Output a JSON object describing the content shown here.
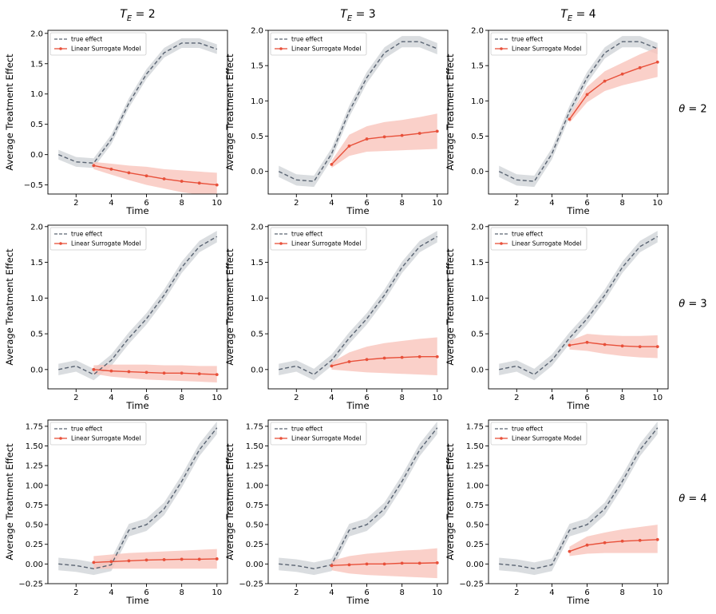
{
  "figure": {
    "column_titles": [
      "T_E = 2",
      "T_E = 3",
      "T_E = 4"
    ],
    "row_titles": [
      "θ = 2",
      "θ = 3",
      "θ = 4"
    ],
    "xlabel": "Time",
    "ylabel": "Average Treatment Effect",
    "legend": {
      "true": "true effect",
      "model": "Linear Surrogate Model",
      "placement": "upper-left"
    },
    "colors": {
      "true": "#5a6472",
      "true_band": "#d3d7db",
      "model": "#e8503a",
      "model_band": "#f9c4bc"
    }
  },
  "chart_data": [
    {
      "type": "line",
      "row": 0,
      "col": 0,
      "title": "T_E = 2",
      "row_label": "θ = 2",
      "xlim": [
        0.4,
        10.6
      ],
      "ylim": [
        -0.65,
        2.05
      ],
      "xticks": [
        2,
        4,
        6,
        8,
        10
      ],
      "yticks": [
        -0.5,
        0.0,
        0.5,
        1.0,
        1.5,
        2.0
      ],
      "ytick_labels": [
        "−0.5",
        "0.0",
        "0.5",
        "1.0",
        "1.5",
        "2.0"
      ],
      "true": {
        "x": [
          1,
          2,
          3,
          4,
          5,
          6,
          7,
          8,
          9,
          10
        ],
        "y": [
          0.0,
          -0.12,
          -0.14,
          0.25,
          0.85,
          1.33,
          1.68,
          1.84,
          1.84,
          1.74
        ],
        "band": 0.08
      },
      "model": {
        "x": [
          3,
          4,
          5,
          6,
          7,
          8,
          9,
          10
        ],
        "y": [
          -0.18,
          -0.24,
          -0.3,
          -0.35,
          -0.4,
          -0.44,
          -0.47,
          -0.5
        ],
        "lower": [
          -0.24,
          -0.33,
          -0.42,
          -0.5,
          -0.56,
          -0.62,
          -0.66,
          -0.7
        ],
        "upper": [
          -0.12,
          -0.15,
          -0.18,
          -0.2,
          -0.24,
          -0.26,
          -0.28,
          -0.3
        ]
      }
    },
    {
      "type": "line",
      "row": 0,
      "col": 1,
      "title": "T_E = 3",
      "row_label": "θ = 2",
      "xlim": [
        0.4,
        10.6
      ],
      "ylim": [
        -0.32,
        2.0
      ],
      "xticks": [
        2,
        4,
        6,
        8,
        10
      ],
      "yticks": [
        0.0,
        0.5,
        1.0,
        1.5,
        2.0
      ],
      "ytick_labels": [
        "0.0",
        "0.5",
        "1.0",
        "1.5",
        "2.0"
      ],
      "true": {
        "x": [
          1,
          2,
          3,
          4,
          5,
          6,
          7,
          8,
          9,
          10
        ],
        "y": [
          0.0,
          -0.12,
          -0.14,
          0.25,
          0.85,
          1.33,
          1.68,
          1.84,
          1.84,
          1.74
        ],
        "band": 0.08
      },
      "model": {
        "x": [
          4,
          5,
          6,
          7,
          8,
          9,
          10
        ],
        "y": [
          0.1,
          0.36,
          0.46,
          0.49,
          0.51,
          0.54,
          0.57
        ],
        "lower": [
          0.05,
          0.22,
          0.28,
          0.29,
          0.3,
          0.31,
          0.32
        ],
        "upper": [
          0.15,
          0.52,
          0.64,
          0.7,
          0.73,
          0.77,
          0.82
        ]
      }
    },
    {
      "type": "line",
      "row": 0,
      "col": 2,
      "title": "T_E = 4",
      "row_label": "θ = 2",
      "xlim": [
        0.4,
        10.6
      ],
      "ylim": [
        -0.32,
        2.0
      ],
      "xticks": [
        2,
        4,
        6,
        8,
        10
      ],
      "yticks": [
        0.0,
        0.5,
        1.0,
        1.5,
        2.0
      ],
      "ytick_labels": [
        "0.0",
        "0.5",
        "1.0",
        "1.5",
        "2.0"
      ],
      "true": {
        "x": [
          1,
          2,
          3,
          4,
          5,
          6,
          7,
          8,
          9,
          10
        ],
        "y": [
          0.0,
          -0.12,
          -0.14,
          0.25,
          0.85,
          1.33,
          1.68,
          1.84,
          1.84,
          1.74
        ],
        "band": 0.08
      },
      "model": {
        "x": [
          5,
          6,
          7,
          8,
          9,
          10
        ],
        "y": [
          0.74,
          1.09,
          1.28,
          1.38,
          1.47,
          1.55
        ],
        "lower": [
          0.69,
          0.98,
          1.14,
          1.22,
          1.28,
          1.34
        ],
        "upper": [
          0.79,
          1.2,
          1.42,
          1.54,
          1.66,
          1.76
        ]
      }
    },
    {
      "type": "line",
      "row": 1,
      "col": 0,
      "title": "",
      "row_label": "θ = 3",
      "xlim": [
        0.4,
        10.6
      ],
      "ylim": [
        -0.27,
        2.02
      ],
      "xticks": [
        2,
        4,
        6,
        8,
        10
      ],
      "yticks": [
        0.0,
        0.5,
        1.0,
        1.5,
        2.0
      ],
      "ytick_labels": [
        "0.0",
        "0.5",
        "1.0",
        "1.5",
        "2.0"
      ],
      "true": {
        "x": [
          1,
          2,
          3,
          4,
          5,
          6,
          7,
          8,
          9,
          10
        ],
        "y": [
          0.0,
          0.05,
          -0.07,
          0.13,
          0.44,
          0.71,
          1.04,
          1.43,
          1.72,
          1.86
        ],
        "band": 0.08
      },
      "model": {
        "x": [
          3,
          4,
          5,
          6,
          7,
          8,
          9,
          10
        ],
        "y": [
          0.0,
          -0.02,
          -0.03,
          -0.04,
          -0.05,
          -0.05,
          -0.06,
          -0.07
        ],
        "lower": [
          -0.06,
          -0.1,
          -0.12,
          -0.14,
          -0.15,
          -0.16,
          -0.17,
          -0.18
        ],
        "upper": [
          0.06,
          0.07,
          0.07,
          0.07,
          0.06,
          0.06,
          0.05,
          0.05
        ]
      }
    },
    {
      "type": "line",
      "row": 1,
      "col": 1,
      "title": "",
      "row_label": "θ = 3",
      "xlim": [
        0.4,
        10.6
      ],
      "ylim": [
        -0.27,
        2.02
      ],
      "xticks": [
        2,
        4,
        6,
        8,
        10
      ],
      "yticks": [
        0.0,
        0.5,
        1.0,
        1.5,
        2.0
      ],
      "ytick_labels": [
        "0.0",
        "0.5",
        "1.0",
        "1.5",
        "2.0"
      ],
      "true": {
        "x": [
          1,
          2,
          3,
          4,
          5,
          6,
          7,
          8,
          9,
          10
        ],
        "y": [
          0.0,
          0.05,
          -0.07,
          0.13,
          0.44,
          0.71,
          1.04,
          1.43,
          1.72,
          1.86
        ],
        "band": 0.08
      },
      "model": {
        "x": [
          4,
          5,
          6,
          7,
          8,
          9,
          10
        ],
        "y": [
          0.05,
          0.11,
          0.14,
          0.16,
          0.17,
          0.18,
          0.18
        ],
        "lower": [
          0.0,
          -0.02,
          -0.04,
          -0.05,
          -0.06,
          -0.07,
          -0.08
        ],
        "upper": [
          0.1,
          0.24,
          0.32,
          0.37,
          0.4,
          0.43,
          0.45
        ]
      }
    },
    {
      "type": "line",
      "row": 1,
      "col": 2,
      "title": "",
      "row_label": "θ = 3",
      "xlim": [
        0.4,
        10.6
      ],
      "ylim": [
        -0.27,
        2.02
      ],
      "xticks": [
        2,
        4,
        6,
        8,
        10
      ],
      "yticks": [
        0.0,
        0.5,
        1.0,
        1.5,
        2.0
      ],
      "ytick_labels": [
        "0.0",
        "0.5",
        "1.0",
        "1.5",
        "2.0"
      ],
      "true": {
        "x": [
          1,
          2,
          3,
          4,
          5,
          6,
          7,
          8,
          9,
          10
        ],
        "y": [
          0.0,
          0.05,
          -0.07,
          0.13,
          0.44,
          0.71,
          1.04,
          1.43,
          1.72,
          1.86
        ],
        "band": 0.08
      },
      "model": {
        "x": [
          5,
          6,
          7,
          8,
          9,
          10
        ],
        "y": [
          0.34,
          0.38,
          0.35,
          0.33,
          0.32,
          0.32
        ],
        "lower": [
          0.28,
          0.26,
          0.22,
          0.19,
          0.17,
          0.16
        ],
        "upper": [
          0.4,
          0.5,
          0.48,
          0.47,
          0.47,
          0.48
        ]
      }
    },
    {
      "type": "line",
      "row": 2,
      "col": 0,
      "title": "",
      "row_label": "θ = 4",
      "xlim": [
        0.4,
        10.6
      ],
      "ylim": [
        -0.25,
        1.83
      ],
      "xticks": [
        2,
        4,
        6,
        8,
        10
      ],
      "yticks": [
        -0.25,
        0.0,
        0.25,
        0.5,
        0.75,
        1.0,
        1.25,
        1.5,
        1.75
      ],
      "ytick_labels": [
        "−0.25",
        "0.00",
        "0.25",
        "0.50",
        "0.75",
        "1.00",
        "1.25",
        "1.50",
        "1.75"
      ],
      "true": {
        "x": [
          1,
          2,
          3,
          4,
          5,
          6,
          7,
          8,
          9,
          10
        ],
        "y": [
          0.0,
          -0.02,
          -0.06,
          -0.01,
          0.43,
          0.5,
          0.7,
          1.05,
          1.45,
          1.73
        ],
        "band": 0.08
      },
      "model": {
        "x": [
          3,
          4,
          5,
          6,
          7,
          8,
          9,
          10
        ],
        "y": [
          0.02,
          0.03,
          0.04,
          0.05,
          0.055,
          0.06,
          0.06,
          0.065
        ],
        "lower": [
          -0.06,
          -0.06,
          -0.06,
          -0.06,
          -0.06,
          -0.06,
          -0.06,
          -0.06
        ],
        "upper": [
          0.1,
          0.12,
          0.14,
          0.15,
          0.16,
          0.17,
          0.18,
          0.19
        ]
      }
    },
    {
      "type": "line",
      "row": 2,
      "col": 1,
      "title": "",
      "row_label": "θ = 4",
      "xlim": [
        0.4,
        10.6
      ],
      "ylim": [
        -0.25,
        1.83
      ],
      "xticks": [
        2,
        4,
        6,
        8,
        10
      ],
      "yticks": [
        -0.25,
        0.0,
        0.25,
        0.5,
        0.75,
        1.0,
        1.25,
        1.5,
        1.75
      ],
      "ytick_labels": [
        "−0.25",
        "0.00",
        "0.25",
        "0.50",
        "0.75",
        "1.00",
        "1.25",
        "1.50",
        "1.75"
      ],
      "true": {
        "x": [
          1,
          2,
          3,
          4,
          5,
          6,
          7,
          8,
          9,
          10
        ],
        "y": [
          0.0,
          -0.02,
          -0.06,
          -0.01,
          0.43,
          0.5,
          0.7,
          1.05,
          1.45,
          1.73
        ],
        "band": 0.08
      },
      "model": {
        "x": [
          4,
          5,
          6,
          7,
          8,
          9,
          10
        ],
        "y": [
          -0.02,
          -0.01,
          0.0,
          0.0,
          0.01,
          0.01,
          0.015
        ],
        "lower": [
          -0.08,
          -0.12,
          -0.14,
          -0.15,
          -0.16,
          -0.17,
          -0.18
        ],
        "upper": [
          0.04,
          0.1,
          0.13,
          0.15,
          0.17,
          0.18,
          0.2
        ]
      }
    },
    {
      "type": "line",
      "row": 2,
      "col": 2,
      "title": "",
      "row_label": "θ = 4",
      "xlim": [
        0.4,
        10.6
      ],
      "ylim": [
        -0.25,
        1.83
      ],
      "xticks": [
        2,
        4,
        6,
        8,
        10
      ],
      "yticks": [
        -0.25,
        0.0,
        0.25,
        0.5,
        0.75,
        1.0,
        1.25,
        1.5,
        1.75
      ],
      "ytick_labels": [
        "−0.25",
        "0.00",
        "0.25",
        "0.50",
        "0.75",
        "1.00",
        "1.25",
        "1.50",
        "1.75"
      ],
      "true": {
        "x": [
          1,
          2,
          3,
          4,
          5,
          6,
          7,
          8,
          9,
          10
        ],
        "y": [
          0.0,
          -0.02,
          -0.06,
          -0.01,
          0.43,
          0.5,
          0.7,
          1.05,
          1.45,
          1.73
        ],
        "band": 0.08
      },
      "model": {
        "x": [
          5,
          6,
          7,
          8,
          9,
          10
        ],
        "y": [
          0.16,
          0.24,
          0.27,
          0.29,
          0.3,
          0.31
        ],
        "lower": [
          0.1,
          0.13,
          0.14,
          0.14,
          0.14,
          0.14
        ],
        "upper": [
          0.22,
          0.35,
          0.4,
          0.44,
          0.47,
          0.5
        ]
      }
    }
  ]
}
